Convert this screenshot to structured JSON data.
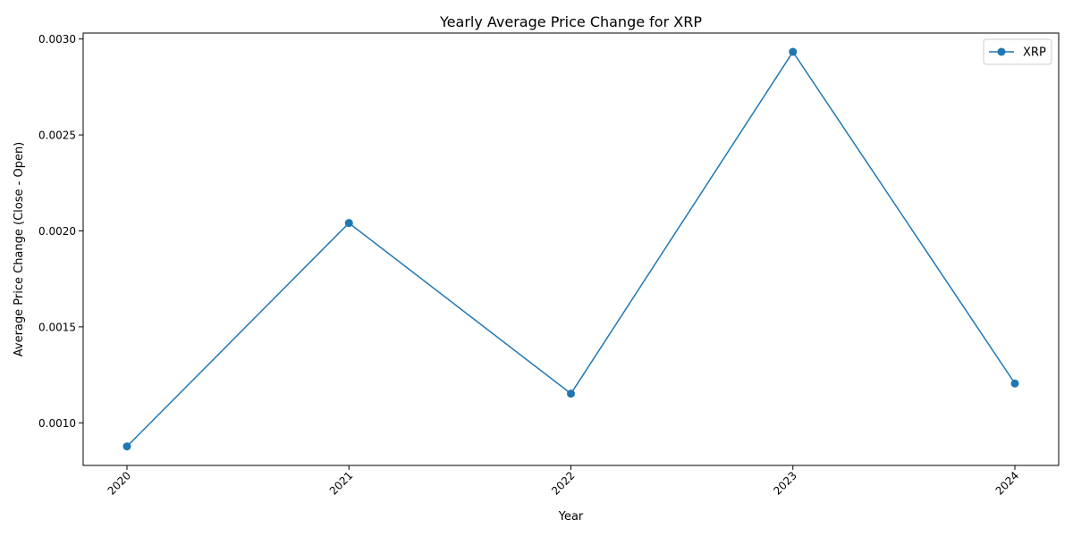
{
  "chart_data": {
    "type": "line",
    "title": "Yearly Average Price Change for XRP",
    "xlabel": "Year",
    "ylabel": "Average Price Change (Close - Open)",
    "categories": [
      "2020",
      "2021",
      "2022",
      "2023",
      "2024"
    ],
    "series": [
      {
        "name": "XRP",
        "color": "#1f77b4",
        "marker": "circle",
        "values": [
          0.000877,
          0.002041,
          0.001152,
          0.002933,
          0.001205
        ]
      }
    ],
    "ylim": [
      0.000778,
      0.003031
    ],
    "yticks": [
      "0.0010",
      "0.0015",
      "0.0020",
      "0.0025",
      "0.0030"
    ],
    "ytick_values": [
      0.001,
      0.0015,
      0.002,
      0.0025,
      0.003
    ],
    "xtick_rotation": 45,
    "grid": false,
    "legend": {
      "position": "top-right"
    }
  }
}
